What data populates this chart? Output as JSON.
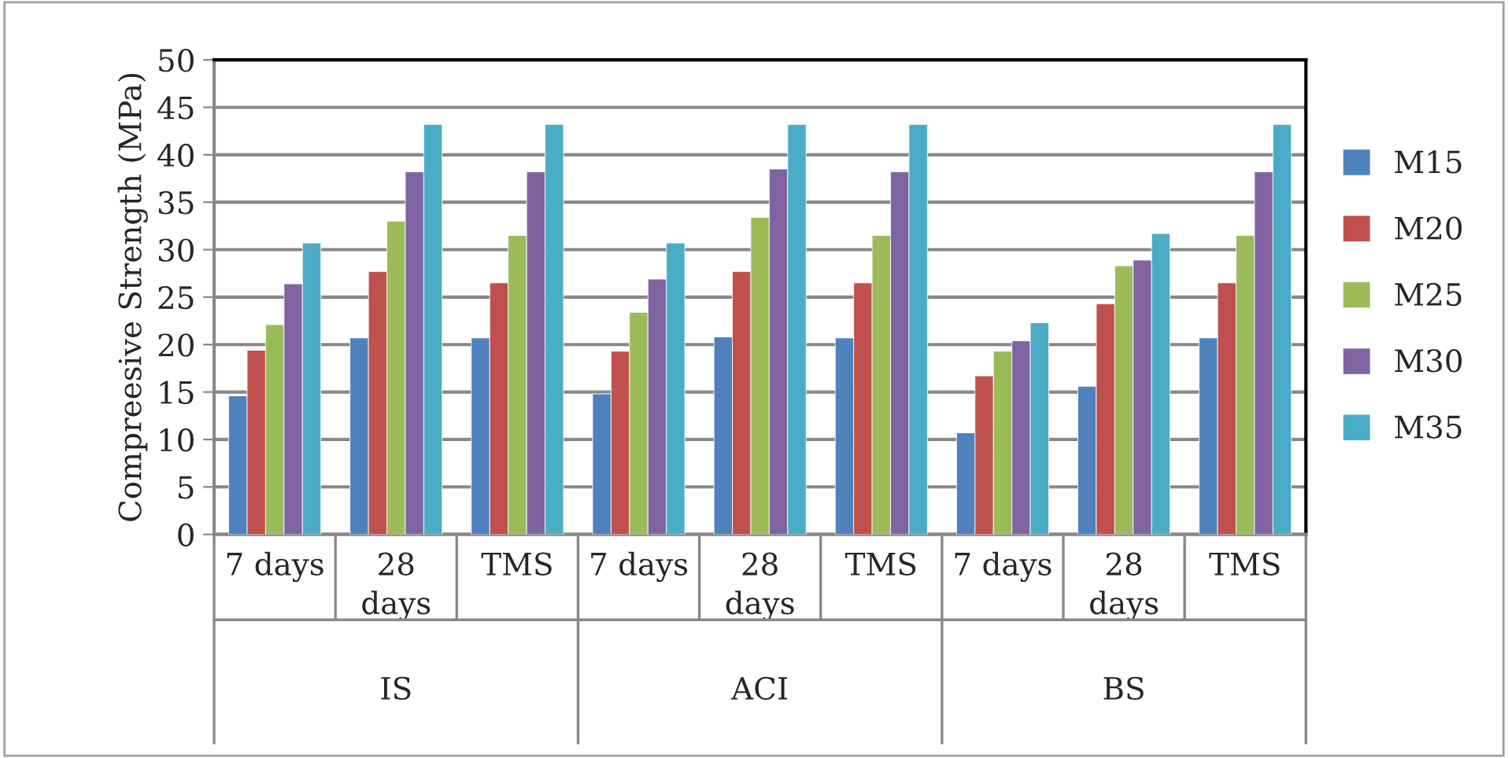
{
  "chart_data": {
    "type": "bar",
    "categories": [
      "7 days",
      "28\ndays",
      "TMS",
      "7 days",
      "28\ndays",
      "TMS",
      "7 days",
      "28\ndays",
      "TMS"
    ],
    "annotations": [
      "IS",
      "ACI",
      "BS"
    ],
    "ylabel": "Compreesive Strength (MPa)",
    "series": [
      {
        "name": "M15",
        "color": "#4f81bd",
        "values": [
          14.6,
          20.7,
          20.7,
          14.8,
          20.8,
          20.7,
          10.7,
          15.6,
          20.7
        ]
      },
      {
        "name": "M20",
        "color": "#c0504d",
        "values": [
          19.4,
          27.7,
          26.5,
          19.3,
          27.7,
          26.5,
          16.7,
          24.3,
          26.5
        ]
      },
      {
        "name": "M25",
        "color": "#9bbb59",
        "values": [
          22.1,
          33.0,
          31.5,
          23.4,
          33.4,
          31.5,
          19.3,
          28.3,
          31.5
        ]
      },
      {
        "name": "M30",
        "color": "#8064a2",
        "values": [
          26.4,
          38.2,
          38.2,
          26.9,
          38.5,
          38.2,
          20.4,
          28.9,
          38.2
        ]
      },
      {
        "name": "M35",
        "color": "#4bacc6",
        "values": [
          30.7,
          43.2,
          43.2,
          30.7,
          43.2,
          43.2,
          22.3,
          31.7,
          43.2
        ]
      }
    ],
    "ylim": [
      0,
      50
    ],
    "yticks": [
      0,
      5,
      10,
      15,
      20,
      25,
      30,
      35,
      40,
      45,
      50
    ],
    "grid": "y",
    "legend": "right"
  }
}
